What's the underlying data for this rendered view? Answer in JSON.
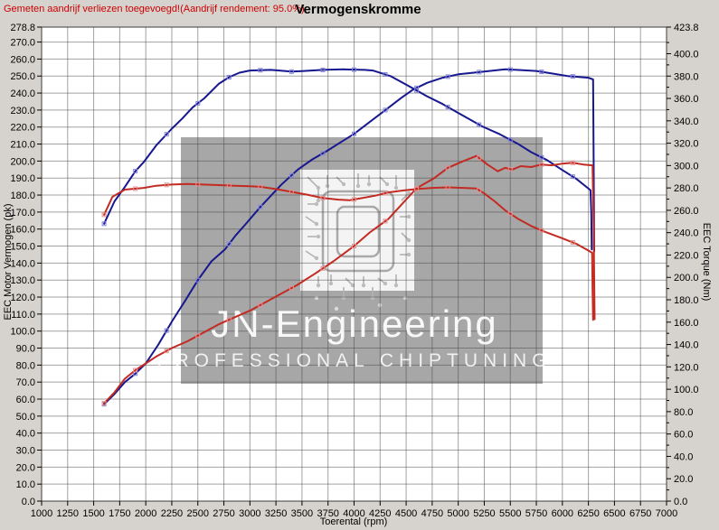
{
  "header": {
    "note": "Gemeten aandrijf verliezen toegevoegd!(Aandrijf rendement: 95.0%)",
    "note_color": "#cc0000",
    "title": "Vermogenskromme"
  },
  "watermark": {
    "line1": "JN-Engineering",
    "line2": "PROFESSIONAL  CHIPTUNING"
  },
  "chart_data": {
    "type": "line",
    "title": "Vermogenskromme",
    "annotation": "Gemeten aandrijf verliezen toegevoegd!(Aandrijf rendement: 95.0%)",
    "grid": true,
    "legend": "none",
    "x_axis": {
      "label": "Toerental (rpm)",
      "min": 1000,
      "max": 7000,
      "tick_step": 250
    },
    "y_left_axis": {
      "label": "EEC Motor Vermogen (pk)",
      "min": 0,
      "max": 278.8,
      "tick_step": 10
    },
    "y_right_axis": {
      "label": "EEC Torque (Nm)",
      "min": 0,
      "max": 423.8,
      "tick_step": 20,
      "minor_step": 10
    },
    "colors": {
      "tuned": "#17178f",
      "original": "#c22a22",
      "tuned_marker": "#8585dd",
      "original_marker": "#e49090"
    },
    "series": [
      {
        "id": "power-tuned",
        "axis": "left",
        "unit": "pk",
        "color_key": "tuned",
        "points": [
          [
            1600,
            57
          ],
          [
            1700,
            63
          ],
          [
            1800,
            70
          ],
          [
            1900,
            75
          ],
          [
            2000,
            81
          ],
          [
            2120,
            92
          ],
          [
            2255,
            106
          ],
          [
            2380,
            118
          ],
          [
            2500,
            130
          ],
          [
            2630,
            141
          ],
          [
            2760,
            148
          ],
          [
            2860,
            156
          ],
          [
            2960,
            163
          ],
          [
            3100,
            173
          ],
          [
            3300,
            186
          ],
          [
            3460,
            195
          ],
          [
            3600,
            201
          ],
          [
            3740,
            206
          ],
          [
            3870,
            211
          ],
          [
            4000,
            216
          ],
          [
            4150,
            223
          ],
          [
            4300,
            230
          ],
          [
            4450,
            237
          ],
          [
            4565,
            242
          ],
          [
            4700,
            246
          ],
          [
            4850,
            249
          ],
          [
            5000,
            251
          ],
          [
            5150,
            252
          ],
          [
            5300,
            253
          ],
          [
            5450,
            254
          ],
          [
            5600,
            253.5
          ],
          [
            5750,
            253
          ],
          [
            5900,
            251.5
          ],
          [
            6050,
            250
          ],
          [
            6160,
            249.5
          ],
          [
            6250,
            249
          ],
          [
            6295,
            248
          ],
          [
            6300,
            200
          ],
          [
            6305,
            147
          ]
        ]
      },
      {
        "id": "torque-tuned",
        "axis": "right",
        "unit": "Nm",
        "color_key": "tuned",
        "points": [
          [
            1600,
            248
          ],
          [
            1700,
            268
          ],
          [
            1800,
            281
          ],
          [
            1900,
            295
          ],
          [
            1980,
            303
          ],
          [
            2100,
            318
          ],
          [
            2250,
            333
          ],
          [
            2350,
            342
          ],
          [
            2450,
            352
          ],
          [
            2560,
            360
          ],
          [
            2700,
            373
          ],
          [
            2800,
            379
          ],
          [
            2900,
            383
          ],
          [
            3000,
            385
          ],
          [
            3200,
            385.5
          ],
          [
            3400,
            384
          ],
          [
            3500,
            384.5
          ],
          [
            3700,
            385.5
          ],
          [
            3900,
            386
          ],
          [
            4100,
            385.5
          ],
          [
            4180,
            385
          ],
          [
            4350,
            380
          ],
          [
            4565,
            369
          ],
          [
            4700,
            362
          ],
          [
            4850,
            355
          ],
          [
            5000,
            347
          ],
          [
            5230,
            335
          ],
          [
            5400,
            328
          ],
          [
            5580,
            319
          ],
          [
            5700,
            312
          ],
          [
            5850,
            305
          ],
          [
            6000,
            296
          ],
          [
            6135,
            288
          ],
          [
            6270,
            278
          ],
          [
            6278,
            258
          ],
          [
            6282,
            225
          ]
        ]
      },
      {
        "id": "power-original",
        "axis": "left",
        "unit": "pk",
        "color_key": "original",
        "points": [
          [
            1600,
            57.5
          ],
          [
            1700,
            64
          ],
          [
            1800,
            72
          ],
          [
            1900,
            77
          ],
          [
            2000,
            81
          ],
          [
            2100,
            85
          ],
          [
            2250,
            90
          ],
          [
            2400,
            94
          ],
          [
            2550,
            99
          ],
          [
            2700,
            104
          ],
          [
            2850,
            108
          ],
          [
            3000,
            112
          ],
          [
            3150,
            117
          ],
          [
            3300,
            122
          ],
          [
            3450,
            127
          ],
          [
            3630,
            134
          ],
          [
            3800,
            141
          ],
          [
            4000,
            150
          ],
          [
            4150,
            158
          ],
          [
            4330,
            166
          ],
          [
            4450,
            174
          ],
          [
            4600,
            184
          ],
          [
            4770,
            190
          ],
          [
            4900,
            196
          ],
          [
            5050,
            200
          ],
          [
            5175,
            203
          ],
          [
            5280,
            198
          ],
          [
            5380,
            194
          ],
          [
            5450,
            196
          ],
          [
            5520,
            195
          ],
          [
            5600,
            197
          ],
          [
            5700,
            196.5
          ],
          [
            5800,
            198
          ],
          [
            5900,
            197.5
          ],
          [
            6000,
            198.5
          ],
          [
            6100,
            199
          ],
          [
            6200,
            198
          ],
          [
            6290,
            197.5
          ],
          [
            6300,
            160
          ],
          [
            6310,
            107
          ]
        ]
      },
      {
        "id": "torque-original",
        "axis": "right",
        "unit": "Nm",
        "color_key": "original",
        "points": [
          [
            1600,
            256
          ],
          [
            1680,
            272
          ],
          [
            1800,
            278.5
          ],
          [
            1980,
            280
          ],
          [
            2100,
            282
          ],
          [
            2250,
            283
          ],
          [
            2400,
            283.5
          ],
          [
            2550,
            283
          ],
          [
            2700,
            282.5
          ],
          [
            2850,
            282
          ],
          [
            3000,
            281.5
          ],
          [
            3100,
            281
          ],
          [
            3250,
            279
          ],
          [
            3400,
            276.5
          ],
          [
            3550,
            274
          ],
          [
            3700,
            271
          ],
          [
            3850,
            269.5
          ],
          [
            3955,
            269
          ],
          [
            4050,
            270.5
          ],
          [
            4200,
            273
          ],
          [
            4330,
            276
          ],
          [
            4450,
            277.5
          ],
          [
            4600,
            279
          ],
          [
            4750,
            280
          ],
          [
            4900,
            280.5
          ],
          [
            5050,
            280
          ],
          [
            5175,
            279.5
          ],
          [
            5250,
            275
          ],
          [
            5350,
            268
          ],
          [
            5450,
            260
          ],
          [
            5580,
            252
          ],
          [
            5700,
            246
          ],
          [
            5840,
            240.5
          ],
          [
            6000,
            235
          ],
          [
            6135,
            230
          ],
          [
            6250,
            224
          ],
          [
            6285,
            222
          ],
          [
            6290,
            190
          ],
          [
            6295,
            162
          ]
        ]
      }
    ],
    "marker_every_rpm": 300
  }
}
